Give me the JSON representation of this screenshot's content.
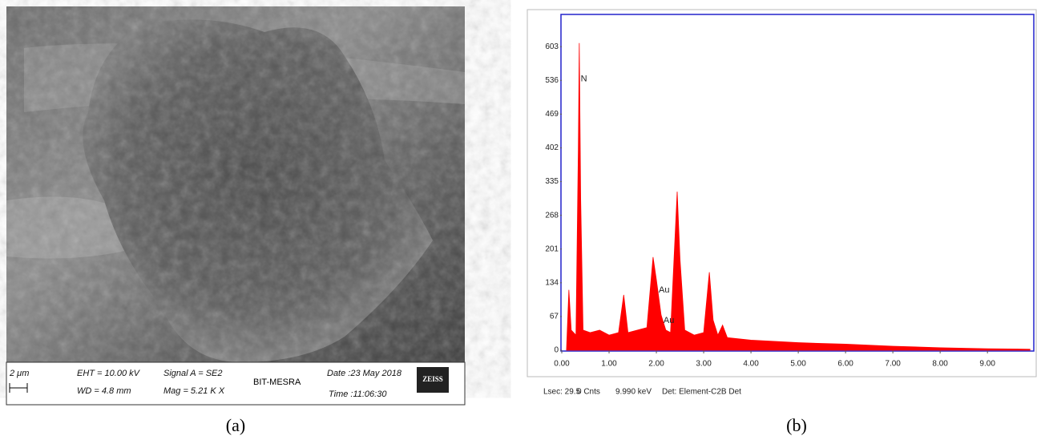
{
  "sem_panel": {
    "scale_bar": "2 μm",
    "eht": "EHT = 10.00 kV",
    "wd": "WD = 4.8 mm",
    "signal": "Signal A = SE2",
    "mag": "Mag = 5.21 K X",
    "institute": "BIT-MESRA",
    "date": "Date :23 May 2018",
    "time": "Time :11:06:30",
    "logo": "ZEISS",
    "caption": "(a)"
  },
  "chart_data": {
    "type": "area",
    "color": "#ff0000",
    "x": [
      0.1,
      0.15,
      0.2,
      0.3,
      0.35,
      0.37,
      0.4,
      0.45,
      0.6,
      0.8,
      1.0,
      1.2,
      1.31,
      1.4,
      1.6,
      1.8,
      1.93,
      2.0,
      2.1,
      2.2,
      2.3,
      2.44,
      2.5,
      2.6,
      2.8,
      3.0,
      3.12,
      3.2,
      3.3,
      3.4,
      3.5,
      4.0,
      5.0,
      6.0,
      7.0,
      8.0,
      9.0,
      9.9
    ],
    "values": [
      0,
      120,
      40,
      30,
      400,
      610,
      300,
      40,
      35,
      40,
      30,
      35,
      110,
      35,
      40,
      45,
      185,
      140,
      70,
      40,
      35,
      315,
      180,
      40,
      30,
      35,
      155,
      60,
      30,
      50,
      25,
      20,
      15,
      12,
      8,
      5,
      3,
      2
    ],
    "xlim": [
      0,
      9.98
    ],
    "ylim": [
      0,
      667
    ],
    "xticks": [
      {
        "value": 0,
        "label": "0.00"
      },
      {
        "value": 1,
        "label": "1.00"
      },
      {
        "value": 2,
        "label": "2.00"
      },
      {
        "value": 3,
        "label": "3.00"
      },
      {
        "value": 4,
        "label": "4.00"
      },
      {
        "value": 5,
        "label": "5.00"
      },
      {
        "value": 6,
        "label": "6.00"
      },
      {
        "value": 7,
        "label": "7.00"
      },
      {
        "value": 8,
        "label": "8.00"
      },
      {
        "value": 9,
        "label": "9.00"
      }
    ],
    "yticks": [
      0,
      67,
      134,
      201,
      268,
      335,
      402,
      469,
      536,
      603
    ],
    "annotations": [
      {
        "label": "N",
        "x": 0.4,
        "y": 539
      },
      {
        "label": "Au",
        "x": 2.05,
        "y": 119
      },
      {
        "label": "Au",
        "x": 2.15,
        "y": 59
      }
    ],
    "footer": [
      "Lsec: 29.5",
      "0 Cnts",
      "9.990 keV",
      "Det: Element-C2B Det"
    ],
    "caption": "(b)"
  }
}
